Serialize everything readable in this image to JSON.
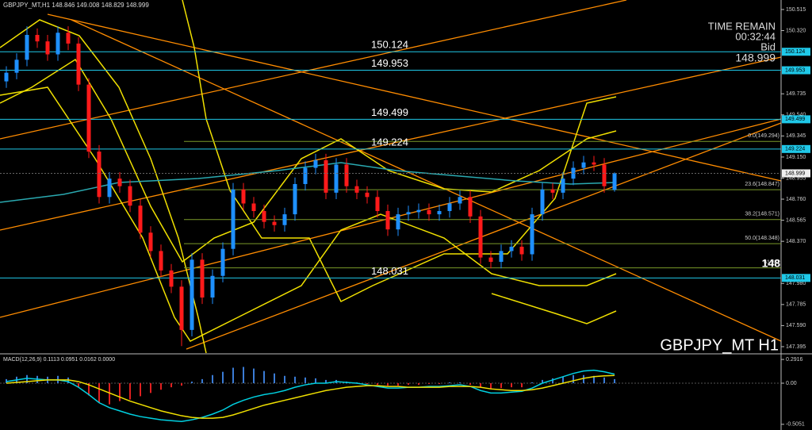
{
  "header": {
    "symbol": "GBPJPY_MT,H1"
  },
  "time_remain": {
    "label": "TIME REMAIN",
    "value": "00:32:44",
    "bid_label": "Bid"
  },
  "watermark": "GBPJPY_MT H1",
  "chart_data": [
    {
      "type": "candlestick",
      "open": [
        149.85,
        149.93,
        150.05,
        150.28,
        150.22,
        150.1,
        150.3,
        150.2,
        149.82,
        149.2,
        148.78,
        148.95,
        148.88,
        148.7,
        148.45,
        148.28,
        148.1,
        147.95,
        147.55,
        148.2,
        147.85,
        148.05,
        148.3,
        148.85,
        148.72,
        148.65,
        148.55,
        148.52,
        148.62,
        148.9,
        149.05,
        149.12,
        148.82,
        149.08,
        148.88,
        148.82,
        148.78,
        148.65,
        148.48,
        148.62,
        148.64,
        148.66,
        148.62,
        148.65,
        148.72,
        148.78,
        148.6,
        148.22,
        148.18,
        148.28,
        148.32,
        148.25,
        148.62,
        148.85,
        148.82,
        148.95,
        149.05,
        149.1,
        149.08,
        148.846
      ],
      "high": [
        149.99,
        150.11,
        150.36,
        150.34,
        150.28,
        150.36,
        150.36,
        150.26,
        149.88,
        149.26,
        149.01,
        149.01,
        148.94,
        148.76,
        148.51,
        148.34,
        148.16,
        148.01,
        148.26,
        148.26,
        148.11,
        148.36,
        148.91,
        148.91,
        148.78,
        148.71,
        148.61,
        148.68,
        148.96,
        149.11,
        149.18,
        149.18,
        149.14,
        149.14,
        148.94,
        148.88,
        148.84,
        148.71,
        148.68,
        148.7,
        148.72,
        148.72,
        148.71,
        148.78,
        148.84,
        148.84,
        148.66,
        148.28,
        148.34,
        148.38,
        148.38,
        148.68,
        148.91,
        148.91,
        149.01,
        149.11,
        149.16,
        149.16,
        149.14,
        149.008
      ],
      "low": [
        149.79,
        149.87,
        149.99,
        150.16,
        150.04,
        150.04,
        150.14,
        149.76,
        149.14,
        148.72,
        148.72,
        148.82,
        148.64,
        148.39,
        148.22,
        148.04,
        147.89,
        147.4,
        147.49,
        147.79,
        147.79,
        147.99,
        148.24,
        148.66,
        148.59,
        148.49,
        148.46,
        148.46,
        148.56,
        148.84,
        148.99,
        148.76,
        148.76,
        148.82,
        148.76,
        148.72,
        148.59,
        148.42,
        148.42,
        148.56,
        148.58,
        148.56,
        148.56,
        148.59,
        148.66,
        148.54,
        148.16,
        148.12,
        148.12,
        148.22,
        148.19,
        148.19,
        148.56,
        148.76,
        148.76,
        148.89,
        148.99,
        149.02,
        148.82,
        148.829
      ],
      "close": [
        149.93,
        150.05,
        150.28,
        150.22,
        150.1,
        150.3,
        150.2,
        149.82,
        149.2,
        148.78,
        148.95,
        148.88,
        148.7,
        148.45,
        148.28,
        148.1,
        147.95,
        147.55,
        148.2,
        147.85,
        148.05,
        148.3,
        148.85,
        148.72,
        148.65,
        148.55,
        148.52,
        148.62,
        148.9,
        149.05,
        149.12,
        148.82,
        149.08,
        148.88,
        148.82,
        148.78,
        148.65,
        148.48,
        148.62,
        148.64,
        148.66,
        148.62,
        148.65,
        148.72,
        148.78,
        148.6,
        148.22,
        148.18,
        148.28,
        148.32,
        148.25,
        148.62,
        148.85,
        148.82,
        148.95,
        149.05,
        149.1,
        149.08,
        148.88,
        148.999
      ],
      "up_color": "#1e90ff",
      "down_color": "#ff1a1a",
      "ylim": [
        147.336,
        150.603
      ],
      "yticks": [
        150.515,
        {
          "value": 150.32,
          "label": "150.320"
        },
        149.735,
        {
          "value": 149.54,
          "label": "149.540"
        },
        149.345,
        {
          "value": 149.15,
          "label": "149.150"
        },
        148.955,
        {
          "value": 148.76,
          "label": "148.760"
        },
        148.565,
        {
          "value": 148.37,
          "label": "148.370"
        },
        {
          "value": 147.98,
          "label": "147.980"
        },
        147.785,
        {
          "value": 147.59,
          "label": "147.590"
        },
        147.395
      ],
      "levels": [
        150.124,
        149.953,
        149.499,
        149.224,
        148.031
      ],
      "level_color": "#1fc8e8",
      "fibonacci": [
        {
          "value": 149.294,
          "label": "0.0(149.294)"
        },
        {
          "value": 148.847,
          "label": "23.6(148.847)"
        },
        {
          "value": 148.571,
          "label": "38.2(148.571)"
        },
        {
          "value": 148.348,
          "label": "50.0(148.348)"
        },
        {
          "value": 148.124,
          "label": "61.8(1"
        }
      ],
      "fib_color": "#7a9a2a",
      "price_flag": "148"
    },
    {
      "type": "macd",
      "title": "MACD(12,26,9)",
      "readout": [
        0.1113,
        0.0951,
        0.0162,
        {
          "value": 0,
          "label": "0.0000"
        }
      ],
      "histogram": [
        0.05,
        0.08,
        0.1,
        0.09,
        0.08,
        0.09,
        0.07,
        -0.05,
        -0.15,
        -0.24,
        -0.26,
        -0.22,
        -0.2,
        -0.16,
        -0.12,
        -0.08,
        -0.05,
        -0.03,
        0.02,
        0.05,
        0.1,
        0.14,
        0.19,
        0.2,
        0.18,
        0.15,
        0.12,
        0.09,
        0.08,
        0.07,
        0.06,
        0.04,
        0.04,
        0.02,
        0.01,
        -0.01,
        -0.02,
        -0.03,
        -0.03,
        -0.02,
        -0.02,
        -0.01,
        -0.01,
        0.01,
        0.01,
        -0.02,
        -0.05,
        -0.07,
        -0.06,
        -0.05,
        -0.05,
        0.01,
        0.04,
        0.06,
        0.08,
        0.1,
        0.1,
        0.09,
        0.07,
        0.05
      ],
      "up_color": "#3a7bd5",
      "down_color": "#e02020",
      "series": [
        {
          "color": "#00d0e0",
          "values": [
            0.02,
            0.04,
            0.06,
            0.05,
            0.04,
            0.04,
            0.02,
            -0.05,
            -0.14,
            -0.24,
            -0.3,
            -0.34,
            -0.38,
            -0.41,
            -0.43,
            -0.45,
            -0.46,
            -0.47,
            -0.45,
            -0.42,
            -0.38,
            -0.33,
            -0.26,
            -0.21,
            -0.17,
            -0.14,
            -0.12,
            -0.09,
            -0.05,
            -0.02,
            0,
            0,
            0.02,
            0.01,
            0,
            -0.02,
            -0.04,
            -0.06,
            -0.06,
            -0.05,
            -0.05,
            -0.04,
            -0.04,
            -0.03,
            -0.02,
            -0.04,
            -0.09,
            -0.12,
            -0.12,
            -0.11,
            -0.1,
            -0.06,
            0,
            0.04,
            0.08,
            0.12,
            0.15,
            0.16,
            0.14,
            0.1113
          ]
        },
        {
          "color": "#f0e000",
          "values": [
            0,
            0.01,
            0.02,
            0.03,
            0.04,
            0.04,
            0.04,
            0.02,
            -0.02,
            -0.07,
            -0.12,
            -0.17,
            -0.22,
            -0.26,
            -0.3,
            -0.34,
            -0.37,
            -0.4,
            -0.42,
            -0.43,
            -0.43,
            -0.42,
            -0.39,
            -0.35,
            -0.31,
            -0.27,
            -0.24,
            -0.21,
            -0.18,
            -0.15,
            -0.12,
            -0.09,
            -0.07,
            -0.05,
            -0.04,
            -0.03,
            -0.03,
            -0.04,
            -0.04,
            -0.05,
            -0.05,
            -0.05,
            -0.05,
            -0.04,
            -0.04,
            -0.04,
            -0.05,
            -0.07,
            -0.08,
            -0.09,
            -0.09,
            -0.08,
            -0.06,
            -0.03,
            0,
            0.03,
            0.06,
            0.08,
            0.09,
            0.0951
          ]
        }
      ],
      "ylim": [
        -0.575,
        0.351
      ],
      "yticks": [
        0.2916,
        {
          "value": 0,
          "label": "0.00"
        },
        -0.5051
      ]
    }
  ]
}
